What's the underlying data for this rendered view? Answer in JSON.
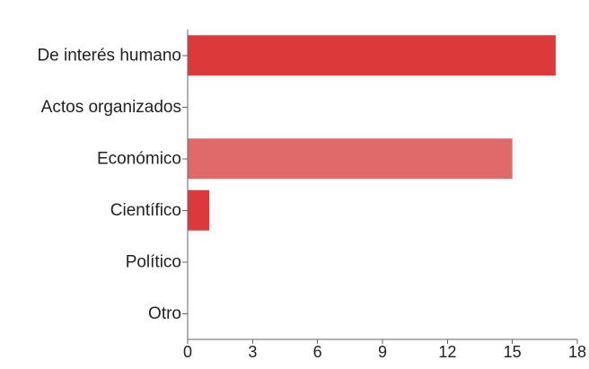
{
  "chart_data": {
    "type": "bar",
    "orientation": "horizontal",
    "categories": [
      "De interés humano",
      "Actos organizados",
      "Económico",
      "Científico",
      "Político",
      "Otro"
    ],
    "values": [
      17,
      0,
      15,
      1,
      0,
      0
    ],
    "bar_colors": [
      "#dc3a3a",
      "#dc3a3a",
      "#e06a6a",
      "#dc3a3a",
      "#dc3a3a",
      "#dc3a3a"
    ],
    "title": "",
    "xlabel": "",
    "ylabel": "",
    "xlim": [
      0,
      18
    ],
    "xticks": [
      0,
      3,
      6,
      9,
      12,
      15,
      18
    ],
    "grid": false,
    "legend": "none"
  }
}
